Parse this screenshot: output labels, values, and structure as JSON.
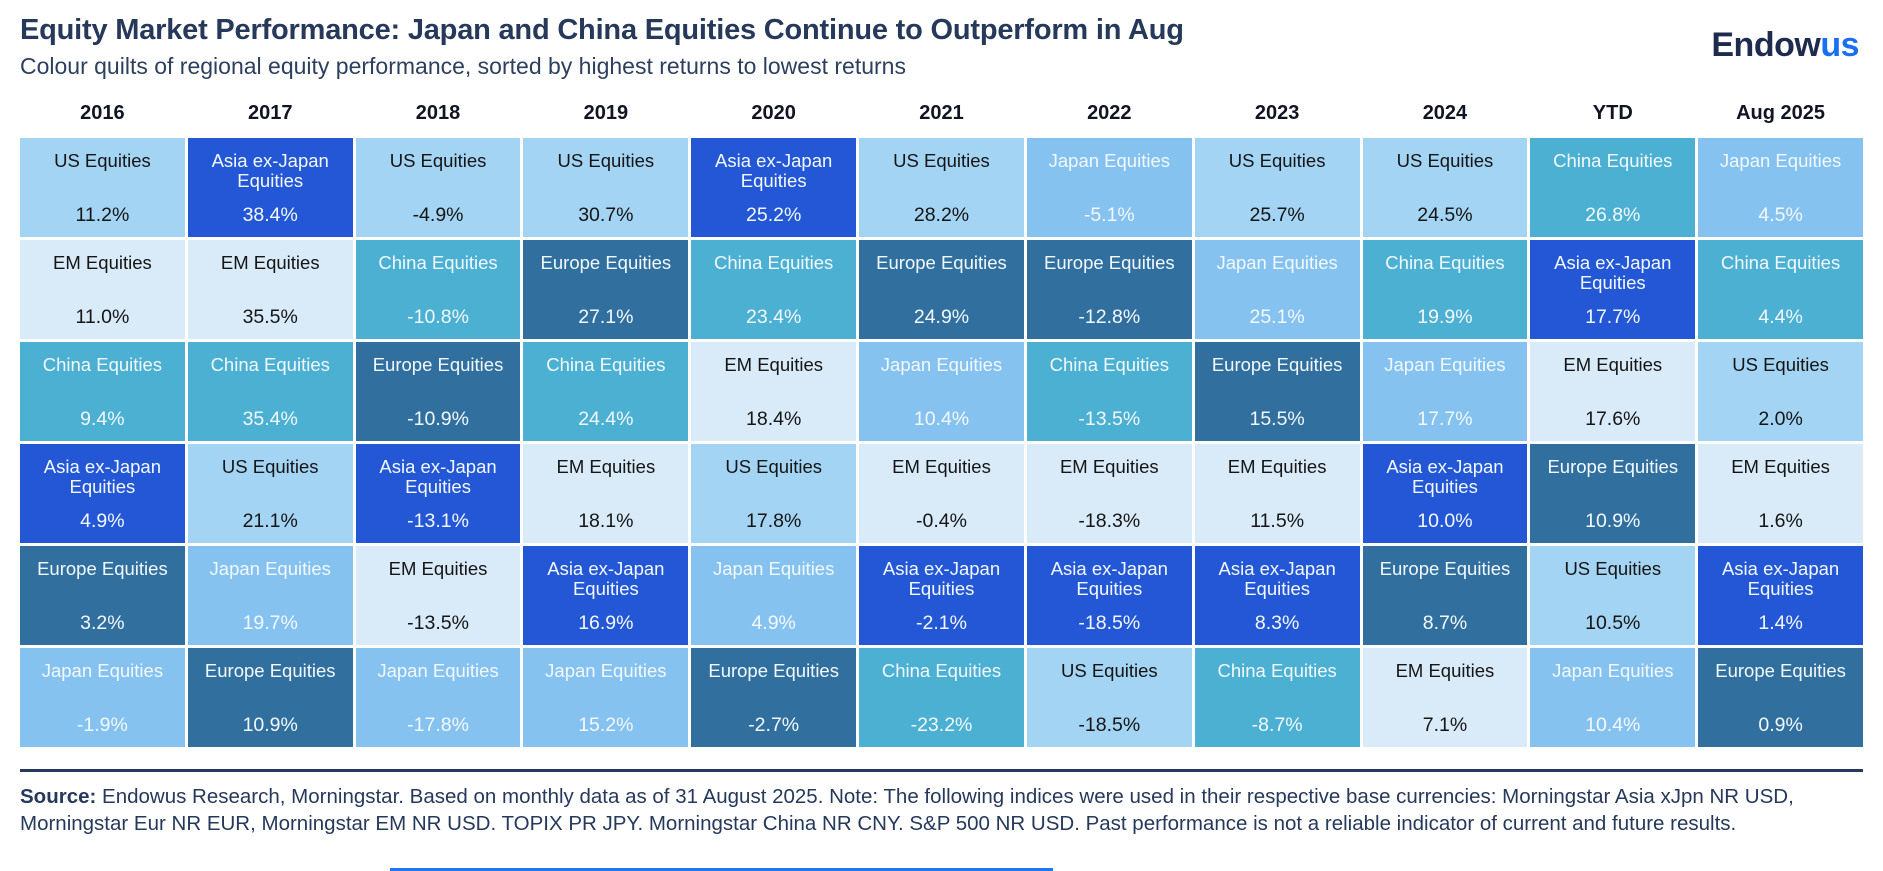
{
  "page": {
    "title": "Equity Market Performance: Japan and China Equities Continue to Outperform in Aug",
    "subtitle": "Colour quilts of regional equity performance, sorted by highest returns to lowest returns",
    "logo": {
      "part_navy": "Endow",
      "part_blue": "us"
    },
    "footer": {
      "source_label": "Source:",
      "source_text": " Endowus Research, Morningstar. Based on monthly data as of 31 August 2025. Note: The following indices were used in their respective base currencies: Morningstar Asia xJpn NR USD, Morningstar Eur NR EUR, Morningstar EM NR USD. TOPIX PR JPY. Morningstar China NR CNY. S&P 500 NR USD. Past performance is not a reliable indicator of current and future results."
    },
    "accent_colors": {
      "title_navy": "#26395B",
      "logo_navy": "#1E2B4D",
      "logo_blue": "#1B6DF3",
      "bottom_line_blue": "#2176F3"
    }
  },
  "chart_data": {
    "type": "heatmap",
    "title": "Equity Market Performance: Japan and China Equities Continue to Outperform in Aug",
    "subtitle": "Colour quilts of regional equity performance, sorted by highest returns to lowest returns",
    "legend_position": "none",
    "value_unit": "%",
    "columns": [
      "2016",
      "2017",
      "2018",
      "2019",
      "2020",
      "2021",
      "2022",
      "2023",
      "2024",
      "YTD",
      "Aug 2025"
    ],
    "assets": {
      "us": {
        "label": "US Equities",
        "bg": "#A4D4F4",
        "text": "#151515"
      },
      "em": {
        "label": "EM Equities",
        "bg": "#D9EAF9",
        "text": "#151515"
      },
      "china": {
        "label": "China Equities",
        "bg": "#4BB0D2",
        "text": "#F2F9FF"
      },
      "asia": {
        "label": "Asia ex-Japan Equities",
        "bg": "#2457D6",
        "text": "#F2F9FF"
      },
      "europe": {
        "label": "Europe Equities",
        "bg": "#31709E",
        "text": "#F2F9FF"
      },
      "japan": {
        "label": "Japan Equities",
        "bg": "#85C2F0",
        "text": "#F2F9FF"
      }
    },
    "ranking": [
      {
        "column": "2016",
        "cells": [
          {
            "asset": "us",
            "value": 11.2
          },
          {
            "asset": "em",
            "value": 11.0
          },
          {
            "asset": "china",
            "value": 9.4
          },
          {
            "asset": "asia",
            "value": 4.9
          },
          {
            "asset": "europe",
            "value": 3.2
          },
          {
            "asset": "japan",
            "value": -1.9
          }
        ]
      },
      {
        "column": "2017",
        "cells": [
          {
            "asset": "asia",
            "value": 38.4
          },
          {
            "asset": "em",
            "value": 35.5
          },
          {
            "asset": "china",
            "value": 35.4
          },
          {
            "asset": "us",
            "value": 21.1
          },
          {
            "asset": "japan",
            "value": 19.7
          },
          {
            "asset": "europe",
            "value": 10.9
          }
        ]
      },
      {
        "column": "2018",
        "cells": [
          {
            "asset": "us",
            "value": -4.9
          },
          {
            "asset": "china",
            "value": -10.8
          },
          {
            "asset": "europe",
            "value": -10.9
          },
          {
            "asset": "asia",
            "value": -13.1
          },
          {
            "asset": "em",
            "value": -13.5
          },
          {
            "asset": "japan",
            "value": -17.8
          }
        ]
      },
      {
        "column": "2019",
        "cells": [
          {
            "asset": "us",
            "value": 30.7
          },
          {
            "asset": "europe",
            "value": 27.1
          },
          {
            "asset": "china",
            "value": 24.4
          },
          {
            "asset": "em",
            "value": 18.1
          },
          {
            "asset": "asia",
            "value": 16.9
          },
          {
            "asset": "japan",
            "value": 15.2
          }
        ]
      },
      {
        "column": "2020",
        "cells": [
          {
            "asset": "asia",
            "value": 25.2
          },
          {
            "asset": "china",
            "value": 23.4
          },
          {
            "asset": "em",
            "value": 18.4
          },
          {
            "asset": "us",
            "value": 17.8
          },
          {
            "asset": "japan",
            "value": 4.9
          },
          {
            "asset": "europe",
            "value": -2.7
          }
        ]
      },
      {
        "column": "2021",
        "cells": [
          {
            "asset": "us",
            "value": 28.2
          },
          {
            "asset": "europe",
            "value": 24.9
          },
          {
            "asset": "japan",
            "value": 10.4
          },
          {
            "asset": "em",
            "value": -0.4
          },
          {
            "asset": "asia",
            "value": -2.1
          },
          {
            "asset": "china",
            "value": -23.2
          }
        ]
      },
      {
        "column": "2022",
        "cells": [
          {
            "asset": "japan",
            "value": -5.1
          },
          {
            "asset": "europe",
            "value": -12.8
          },
          {
            "asset": "china",
            "value": -13.5
          },
          {
            "asset": "em",
            "value": -18.3
          },
          {
            "asset": "asia",
            "value": -18.5
          },
          {
            "asset": "us",
            "value": -18.5
          }
        ]
      },
      {
        "column": "2023",
        "cells": [
          {
            "asset": "us",
            "value": 25.7
          },
          {
            "asset": "japan",
            "value": 25.1
          },
          {
            "asset": "europe",
            "value": 15.5
          },
          {
            "asset": "em",
            "value": 11.5
          },
          {
            "asset": "asia",
            "value": 8.3
          },
          {
            "asset": "china",
            "value": -8.7
          }
        ]
      },
      {
        "column": "2024",
        "cells": [
          {
            "asset": "us",
            "value": 24.5
          },
          {
            "asset": "china",
            "value": 19.9
          },
          {
            "asset": "japan",
            "value": 17.7
          },
          {
            "asset": "asia",
            "value": 10.0
          },
          {
            "asset": "europe",
            "value": 8.7
          },
          {
            "asset": "em",
            "value": 7.1
          }
        ]
      },
      {
        "column": "YTD",
        "cells": [
          {
            "asset": "china",
            "value": 26.8
          },
          {
            "asset": "asia",
            "value": 17.7
          },
          {
            "asset": "em",
            "value": 17.6
          },
          {
            "asset": "europe",
            "value": 10.9
          },
          {
            "asset": "us",
            "value": 10.5
          },
          {
            "asset": "japan",
            "value": 10.4
          }
        ]
      },
      {
        "column": "Aug 2025",
        "cells": [
          {
            "asset": "japan",
            "value": 4.5
          },
          {
            "asset": "china",
            "value": 4.4
          },
          {
            "asset": "us",
            "value": 2.0
          },
          {
            "asset": "em",
            "value": 1.6
          },
          {
            "asset": "asia",
            "value": 1.4
          },
          {
            "asset": "europe",
            "value": 0.9
          }
        ]
      }
    ]
  }
}
